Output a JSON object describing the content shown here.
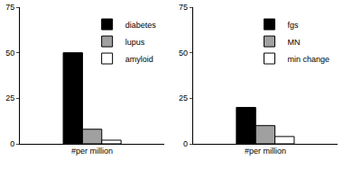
{
  "chart_data": [
    {
      "type": "bar",
      "xlabel": "#per million",
      "categories": [
        null
      ],
      "series": [
        {
          "name": "diabetes",
          "color": "#000000",
          "values": [
            50
          ]
        },
        {
          "name": "lupus",
          "color": "#a0a0a0",
          "values": [
            8
          ]
        },
        {
          "name": "amyloid",
          "color": "#ffffff",
          "values": [
            2
          ]
        }
      ],
      "ylim": [
        0,
        75
      ],
      "yticks": [
        0,
        25,
        50,
        75
      ],
      "grid": false,
      "legend": "upper right",
      "tick_labels": "y"
    },
    {
      "type": "bar",
      "xlabel": "#per million",
      "categories": [
        null
      ],
      "series": [
        {
          "name": "fgs",
          "color": "#000000",
          "values": [
            20
          ]
        },
        {
          "name": "MN",
          "color": "#a0a0a0",
          "values": [
            10
          ]
        },
        {
          "name": "min change",
          "color": "#ffffff",
          "values": [
            4
          ]
        }
      ],
      "ylim": [
        0,
        75
      ],
      "yticks": [
        0,
        25,
        50,
        75
      ],
      "grid": false,
      "legend": "upper right",
      "tick_labels": "y"
    }
  ]
}
